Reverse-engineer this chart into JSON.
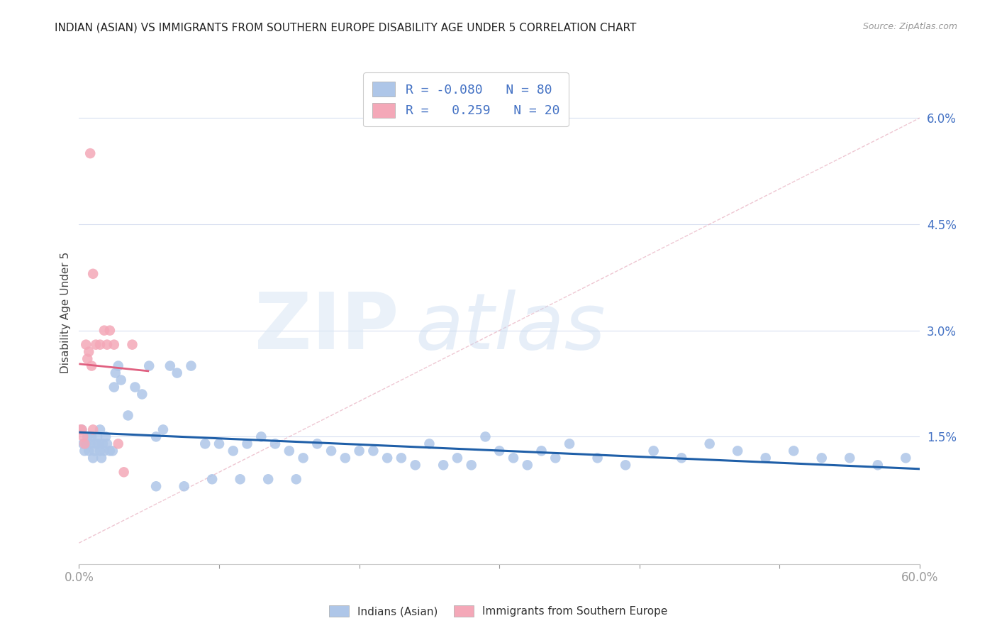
{
  "title": "INDIAN (ASIAN) VS IMMIGRANTS FROM SOUTHERN EUROPE DISABILITY AGE UNDER 5 CORRELATION CHART",
  "source": "Source: ZipAtlas.com",
  "ylabel": "Disability Age Under 5",
  "xlim": [
    0.0,
    0.6
  ],
  "ylim": [
    -0.003,
    0.068
  ],
  "yticks": [
    0.015,
    0.03,
    0.045,
    0.06
  ],
  "ytick_labels": [
    "1.5%",
    "3.0%",
    "4.5%",
    "6.0%"
  ],
  "series1_name": "Indians (Asian)",
  "series1_color": "#aec6e8",
  "series1_line_color": "#1f5fa8",
  "series1_R": -0.08,
  "series1_N": 80,
  "series2_name": "Immigrants from Southern Europe",
  "series2_color": "#f4a8b8",
  "series2_line_color": "#e06080",
  "series2_R": 0.259,
  "series2_N": 20,
  "legend_R1": "-0.080",
  "legend_R2": " 0.259",
  "legend_N1": "80",
  "legend_N2": "20",
  "background_color": "#ffffff",
  "grid_color": "#d8dff0",
  "axis_label_color": "#4472c4",
  "ref_line_color": "#e0b0c0",
  "series1_x": [
    0.002,
    0.003,
    0.004,
    0.005,
    0.006,
    0.007,
    0.008,
    0.009,
    0.01,
    0.011,
    0.012,
    0.013,
    0.014,
    0.015,
    0.016,
    0.017,
    0.018,
    0.019,
    0.02,
    0.022,
    0.024,
    0.026,
    0.028,
    0.03,
    0.035,
    0.04,
    0.045,
    0.05,
    0.055,
    0.06,
    0.065,
    0.07,
    0.08,
    0.09,
    0.1,
    0.11,
    0.12,
    0.13,
    0.14,
    0.15,
    0.16,
    0.17,
    0.18,
    0.19,
    0.2,
    0.21,
    0.22,
    0.23,
    0.24,
    0.25,
    0.26,
    0.27,
    0.28,
    0.29,
    0.3,
    0.31,
    0.32,
    0.33,
    0.34,
    0.35,
    0.37,
    0.39,
    0.41,
    0.43,
    0.45,
    0.47,
    0.49,
    0.51,
    0.53,
    0.55,
    0.57,
    0.59,
    0.015,
    0.025,
    0.055,
    0.075,
    0.095,
    0.115,
    0.135,
    0.155
  ],
  "series1_y": [
    0.016,
    0.014,
    0.013,
    0.014,
    0.015,
    0.013,
    0.014,
    0.015,
    0.012,
    0.013,
    0.014,
    0.015,
    0.014,
    0.013,
    0.012,
    0.014,
    0.013,
    0.015,
    0.014,
    0.013,
    0.013,
    0.024,
    0.025,
    0.023,
    0.018,
    0.022,
    0.021,
    0.025,
    0.015,
    0.016,
    0.025,
    0.024,
    0.025,
    0.014,
    0.014,
    0.013,
    0.014,
    0.015,
    0.014,
    0.013,
    0.012,
    0.014,
    0.013,
    0.012,
    0.013,
    0.013,
    0.012,
    0.012,
    0.011,
    0.014,
    0.011,
    0.012,
    0.011,
    0.015,
    0.013,
    0.012,
    0.011,
    0.013,
    0.012,
    0.014,
    0.012,
    0.011,
    0.013,
    0.012,
    0.014,
    0.013,
    0.012,
    0.013,
    0.012,
    0.012,
    0.011,
    0.012,
    0.016,
    0.022,
    0.008,
    0.008,
    0.009,
    0.009,
    0.009,
    0.009
  ],
  "series2_x": [
    0.001,
    0.002,
    0.003,
    0.004,
    0.005,
    0.006,
    0.007,
    0.008,
    0.009,
    0.01,
    0.012,
    0.015,
    0.018,
    0.02,
    0.022,
    0.025,
    0.028,
    0.032,
    0.038,
    0.01
  ],
  "series2_y": [
    0.016,
    0.016,
    0.015,
    0.014,
    0.028,
    0.026,
    0.027,
    0.055,
    0.025,
    0.038,
    0.028,
    0.028,
    0.03,
    0.028,
    0.03,
    0.028,
    0.014,
    0.01,
    0.028,
    0.016
  ]
}
